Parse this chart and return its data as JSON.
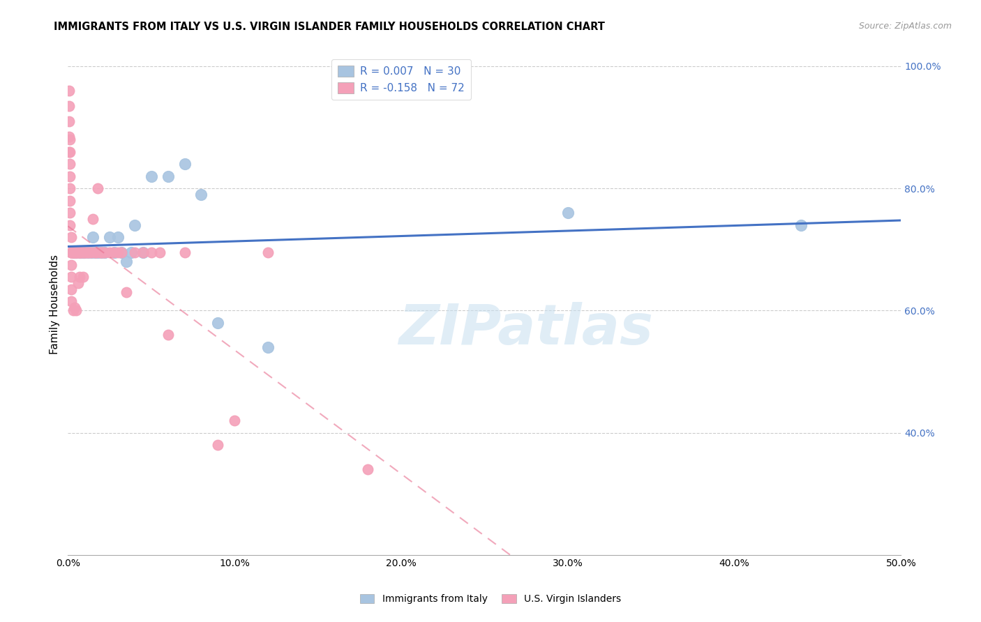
{
  "title": "IMMIGRANTS FROM ITALY VS U.S. VIRGIN ISLANDER FAMILY HOUSEHOLDS CORRELATION CHART",
  "source": "Source: ZipAtlas.com",
  "ylabel": "Family Households",
  "xlim": [
    0.0,
    0.5
  ],
  "ylim": [
    0.2,
    1.02
  ],
  "x_ticks": [
    0.0,
    0.1,
    0.2,
    0.3,
    0.4,
    0.5
  ],
  "x_tick_labels": [
    "0.0%",
    "10.0%",
    "20.0%",
    "30.0%",
    "40.0%",
    "50.0%"
  ],
  "y_ticks_right": [
    0.4,
    0.6,
    0.8,
    1.0
  ],
  "y_tick_labels_right": [
    "40.0%",
    "60.0%",
    "80.0%",
    "100.0%"
  ],
  "blue_R": 0.007,
  "blue_N": 30,
  "pink_R": -0.158,
  "pink_N": 72,
  "blue_color": "#a8c4e0",
  "pink_color": "#f4a0b8",
  "blue_line_color": "#4472c4",
  "pink_line_color": "#e87090",
  "legend_R_color": "#4472c4",
  "watermark_text": "ZIPatlas",
  "blue_points_x": [
    0.003,
    0.004,
    0.005,
    0.007,
    0.008,
    0.009,
    0.01,
    0.012,
    0.014,
    0.015,
    0.016,
    0.018,
    0.02,
    0.022,
    0.025,
    0.028,
    0.03,
    0.032,
    0.035,
    0.038,
    0.04,
    0.045,
    0.05,
    0.06,
    0.07,
    0.08,
    0.09,
    0.12,
    0.3,
    0.44
  ],
  "blue_points_y": [
    0.695,
    0.695,
    0.695,
    0.695,
    0.695,
    0.695,
    0.695,
    0.695,
    0.695,
    0.72,
    0.695,
    0.695,
    0.695,
    0.695,
    0.72,
    0.695,
    0.72,
    0.695,
    0.68,
    0.695,
    0.74,
    0.695,
    0.82,
    0.82,
    0.84,
    0.79,
    0.58,
    0.54,
    0.76,
    0.74
  ],
  "pink_points_x": [
    0.0005,
    0.0005,
    0.0005,
    0.0005,
    0.0005,
    0.001,
    0.001,
    0.001,
    0.001,
    0.001,
    0.001,
    0.001,
    0.001,
    0.002,
    0.002,
    0.002,
    0.002,
    0.002,
    0.002,
    0.002,
    0.002,
    0.002,
    0.003,
    0.003,
    0.003,
    0.003,
    0.004,
    0.004,
    0.004,
    0.005,
    0.005,
    0.005,
    0.005,
    0.006,
    0.006,
    0.006,
    0.007,
    0.007,
    0.007,
    0.008,
    0.008,
    0.009,
    0.009,
    0.01,
    0.01,
    0.011,
    0.012,
    0.013,
    0.014,
    0.015,
    0.016,
    0.017,
    0.018,
    0.019,
    0.02,
    0.021,
    0.022,
    0.025,
    0.027,
    0.03,
    0.032,
    0.035,
    0.04,
    0.045,
    0.05,
    0.055,
    0.06,
    0.07,
    0.09,
    0.1,
    0.12,
    0.18
  ],
  "pink_points_y": [
    0.96,
    0.935,
    0.91,
    0.885,
    0.86,
    0.88,
    0.86,
    0.84,
    0.82,
    0.8,
    0.78,
    0.76,
    0.74,
    0.695,
    0.72,
    0.695,
    0.695,
    0.695,
    0.675,
    0.655,
    0.635,
    0.615,
    0.695,
    0.695,
    0.695,
    0.6,
    0.695,
    0.695,
    0.605,
    0.695,
    0.695,
    0.695,
    0.6,
    0.695,
    0.695,
    0.645,
    0.695,
    0.695,
    0.655,
    0.695,
    0.695,
    0.695,
    0.655,
    0.695,
    0.695,
    0.695,
    0.695,
    0.695,
    0.695,
    0.75,
    0.695,
    0.695,
    0.8,
    0.695,
    0.695,
    0.695,
    0.695,
    0.695,
    0.695,
    0.695,
    0.695,
    0.63,
    0.695,
    0.695,
    0.695,
    0.695,
    0.56,
    0.695,
    0.38,
    0.42,
    0.695,
    0.34
  ]
}
